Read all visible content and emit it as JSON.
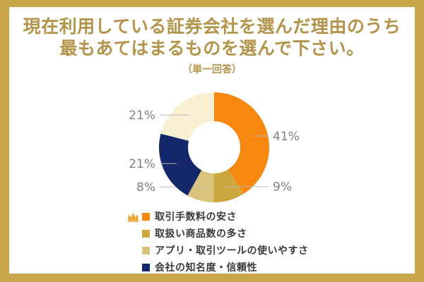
{
  "frame": {
    "border_color": "#C8A74B",
    "card_background": "#FFFFFF"
  },
  "header": {
    "title_line1": "現在利用している証券会社を選んだ理由のうち",
    "title_line2": "最もあてはまるものを選んで下さい。",
    "subtitle": "（単一回答）",
    "title_color": "#B2944A"
  },
  "chart_data": {
    "type": "pie",
    "subtype": "donut",
    "title": "現在利用している証券会社を選んだ理由のうち最もあてはまるものを選んで下さい。（単一回答）",
    "unit": "%",
    "start_angle": "top",
    "direction": "clockwise",
    "legend_position": "bottom",
    "value_label_color": "#808080",
    "leader_line_color": "#B8B8B8",
    "segments": [
      {
        "label": "取引手数料の安さ",
        "value": 41,
        "color": "#F6870F",
        "in_legend": true,
        "crown": true
      },
      {
        "label": "取扱い商品数の多さ",
        "value": 9,
        "color": "#CDA63E",
        "in_legend": true,
        "crown": false
      },
      {
        "label": "アプリ・取引ツールの使いやすさ",
        "value": 8,
        "color": "#DBC37E",
        "in_legend": true,
        "crown": false
      },
      {
        "label": "会社の知名度・信頼性",
        "value": 21,
        "color": "#13276A",
        "in_legend": true,
        "crown": false
      },
      {
        "label": "",
        "value": 21,
        "color": "#F9EFD3",
        "in_legend": false,
        "crown": false
      }
    ]
  },
  "icons": {
    "crown_color": "#E9A63B"
  }
}
